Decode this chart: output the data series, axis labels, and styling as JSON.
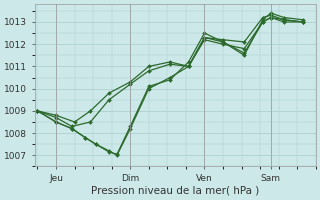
{
  "bg_color": "#cce8e8",
  "grid_color": "#aacccc",
  "line_color": "#2d6a2d",
  "marker_color": "#2d6a2d",
  "xlabel": "Pression niveau de la mer( hPa )",
  "ylim": [
    1006.5,
    1013.8
  ],
  "yticks": [
    1007,
    1008,
    1009,
    1010,
    1011,
    1012,
    1013
  ],
  "xtick_labels": [
    "Jeu",
    "Dim",
    "Ven",
    "Sam"
  ],
  "xtick_positions": [
    0.07,
    0.35,
    0.63,
    0.88
  ],
  "series": [
    {
      "x": [
        0.0,
        0.07,
        0.13,
        0.2,
        0.27,
        0.35,
        0.42,
        0.5,
        0.57,
        0.63,
        0.7,
        0.78,
        0.85,
        0.88,
        0.93,
        1.0
      ],
      "y": [
        1009.0,
        1008.7,
        1008.3,
        1008.5,
        1009.5,
        1010.2,
        1010.8,
        1011.1,
        1011.0,
        1012.3,
        1012.2,
        1012.1,
        1013.2,
        1013.3,
        1013.1,
        1013.0
      ]
    },
    {
      "x": [
        0.0,
        0.07,
        0.13,
        0.18,
        0.22,
        0.27,
        0.3,
        0.35,
        0.42,
        0.5,
        0.57,
        0.63,
        0.7,
        0.78,
        0.85,
        0.88,
        0.93,
        1.0
      ],
      "y": [
        1009.0,
        1008.5,
        1008.2,
        1007.8,
        1007.5,
        1007.2,
        1007.0,
        1008.2,
        1010.0,
        1010.5,
        1011.0,
        1012.2,
        1012.0,
        1011.8,
        1013.0,
        1013.2,
        1013.1,
        1013.0
      ]
    },
    {
      "x": [
        0.0,
        0.07,
        0.13,
        0.18,
        0.22,
        0.27,
        0.3,
        0.35,
        0.42,
        0.5,
        0.57,
        0.63,
        0.7,
        0.78,
        0.85,
        0.88,
        0.93,
        1.0
      ],
      "y": [
        1009.0,
        1008.5,
        1008.2,
        1007.8,
        1007.5,
        1007.15,
        1007.05,
        1008.3,
        1010.1,
        1010.4,
        1011.2,
        1012.5,
        1012.1,
        1011.5,
        1013.1,
        1013.4,
        1013.2,
        1013.1
      ]
    },
    {
      "x": [
        0.0,
        0.07,
        0.14,
        0.2,
        0.27,
        0.35,
        0.42,
        0.5,
        0.57,
        0.63,
        0.7,
        0.78,
        0.85,
        0.88,
        0.93,
        1.0
      ],
      "y": [
        1009.0,
        1008.8,
        1008.5,
        1009.0,
        1009.8,
        1010.3,
        1011.0,
        1011.2,
        1011.0,
        1012.3,
        1012.1,
        1011.6,
        1013.0,
        1013.2,
        1013.0,
        1013.0
      ]
    }
  ]
}
